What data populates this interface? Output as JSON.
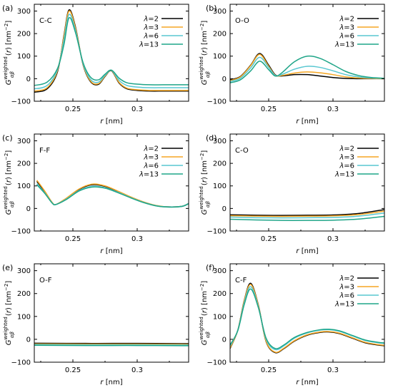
{
  "colors": {
    "lambda_2": "#000000",
    "lambda_3": "#f5a623",
    "lambda_6": "#59c7d1",
    "lambda_13": "#1fa588"
  },
  "chart_data": [
    {
      "panel": "(a)",
      "annotation": "C-C",
      "type": "line",
      "ylabel": "G_{αβ}^{weighted}(r) [nm^{-2}]",
      "xlabel": "r [nm]",
      "xlim": [
        0.22,
        0.34
      ],
      "ylim": [
        -100,
        330
      ],
      "xticks": [
        "0.25",
        "0.3"
      ],
      "yticks": [
        "-100",
        "0",
        "100",
        "200",
        "300"
      ],
      "legend": "top-right",
      "series": [
        {
          "name": "λ=2",
          "x": [
            0.22,
            0.23,
            0.238,
            0.243,
            0.247,
            0.252,
            0.258,
            0.264,
            0.27,
            0.275,
            0.28,
            0.286,
            0.292,
            0.3,
            0.31,
            0.32,
            0.33,
            0.34
          ],
          "y": [
            -60,
            -45,
            30,
            190,
            305,
            230,
            60,
            -15,
            -25,
            10,
            35,
            -20,
            -45,
            -52,
            -55,
            -55,
            -55,
            -55
          ]
        },
        {
          "name": "λ=3",
          "x": [
            0.22,
            0.23,
            0.238,
            0.243,
            0.247,
            0.252,
            0.258,
            0.264,
            0.27,
            0.275,
            0.28,
            0.286,
            0.292,
            0.3,
            0.31,
            0.32,
            0.33,
            0.34
          ],
          "y": [
            -55,
            -40,
            35,
            185,
            300,
            225,
            62,
            -12,
            -22,
            12,
            36,
            -17,
            -42,
            -49,
            -52,
            -52,
            -52,
            -52
          ]
        },
        {
          "name": "λ=6",
          "x": [
            0.22,
            0.23,
            0.238,
            0.243,
            0.247,
            0.252,
            0.258,
            0.264,
            0.27,
            0.275,
            0.28,
            0.286,
            0.292,
            0.3,
            0.31,
            0.32,
            0.33,
            0.34
          ],
          "y": [
            -45,
            -30,
            40,
            170,
            285,
            215,
            65,
            -5,
            -15,
            15,
            37,
            -8,
            -30,
            -37,
            -40,
            -40,
            -40,
            -40
          ]
        },
        {
          "name": "λ=13",
          "x": [
            0.22,
            0.23,
            0.238,
            0.243,
            0.247,
            0.252,
            0.258,
            0.264,
            0.27,
            0.275,
            0.28,
            0.286,
            0.292,
            0.3,
            0.31,
            0.32,
            0.33,
            0.34
          ],
          "y": [
            -30,
            -15,
            45,
            150,
            270,
            205,
            70,
            5,
            -5,
            20,
            38,
            2,
            -18,
            -24,
            -27,
            -27,
            -27,
            -27
          ]
        }
      ]
    },
    {
      "panel": "(b)",
      "annotation": "O-O",
      "type": "line",
      "ylabel": "G_{αβ}^{weighted}(r) [nm^{-2}]",
      "xlabel": "r [nm]",
      "xlim": [
        0.22,
        0.34
      ],
      "ylim": [
        -100,
        330
      ],
      "xticks": [
        "0.25",
        "0.3"
      ],
      "yticks": [
        "-100",
        "0",
        "100",
        "200",
        "300"
      ],
      "legend": "top-right",
      "series": [
        {
          "name": "λ=2",
          "x": [
            0.22,
            0.228,
            0.236,
            0.243,
            0.25,
            0.255,
            0.26,
            0.27,
            0.28,
            0.29,
            0.3,
            0.31,
            0.32,
            0.33,
            0.34
          ],
          "y": [
            -5,
            10,
            60,
            112,
            60,
            18,
            12,
            18,
            18,
            12,
            5,
            1,
            0,
            0,
            0
          ]
        },
        {
          "name": "λ=3",
          "x": [
            0.22,
            0.228,
            0.236,
            0.243,
            0.25,
            0.255,
            0.26,
            0.27,
            0.28,
            0.29,
            0.3,
            0.31,
            0.32,
            0.33,
            0.34
          ],
          "y": [
            -8,
            8,
            58,
            108,
            55,
            16,
            14,
            25,
            30,
            26,
            18,
            8,
            3,
            1,
            0
          ]
        },
        {
          "name": "λ=6",
          "x": [
            0.22,
            0.228,
            0.236,
            0.243,
            0.25,
            0.255,
            0.26,
            0.27,
            0.28,
            0.29,
            0.3,
            0.31,
            0.32,
            0.33,
            0.34
          ],
          "y": [
            -12,
            2,
            48,
            95,
            50,
            15,
            18,
            42,
            55,
            50,
            35,
            18,
            8,
            3,
            1
          ]
        },
        {
          "name": "λ=13",
          "x": [
            0.22,
            0.228,
            0.236,
            0.243,
            0.25,
            0.255,
            0.26,
            0.27,
            0.28,
            0.29,
            0.3,
            0.31,
            0.32,
            0.33,
            0.34
          ],
          "y": [
            -18,
            -5,
            35,
            78,
            40,
            12,
            25,
            75,
            100,
            90,
            62,
            32,
            14,
            5,
            2
          ]
        }
      ]
    },
    {
      "panel": "(c)",
      "annotation": "F-F",
      "type": "line",
      "ylabel": "G_{αβ}^{weighted}(r) [nm^{-2}]",
      "xlabel": "r [nm]",
      "xlim": [
        0.22,
        0.34
      ],
      "ylim": [
        -100,
        330
      ],
      "xticks": [
        "0.25",
        "0.3"
      ],
      "yticks": [
        "-100",
        "0",
        "100",
        "200",
        "300"
      ],
      "legend": "top-right",
      "series": [
        {
          "name": "λ=2",
          "x": [
            0.222,
            0.228,
            0.234,
            0.237,
            0.245,
            0.255,
            0.265,
            0.275,
            0.285,
            0.295,
            0.305,
            0.315,
            0.325,
            0.335,
            0.34
          ],
          "y": [
            120,
            75,
            25,
            18,
            45,
            85,
            105,
            98,
            75,
            50,
            28,
            12,
            7,
            10,
            22
          ]
        },
        {
          "name": "λ=3",
          "x": [
            0.222,
            0.228,
            0.234,
            0.237,
            0.245,
            0.255,
            0.265,
            0.275,
            0.285,
            0.295,
            0.305,
            0.315,
            0.325,
            0.335,
            0.34
          ],
          "y": [
            125,
            78,
            26,
            18,
            46,
            87,
            108,
            100,
            77,
            51,
            29,
            13,
            7,
            10,
            22
          ]
        },
        {
          "name": "λ=6",
          "x": [
            0.222,
            0.228,
            0.234,
            0.237,
            0.245,
            0.255,
            0.265,
            0.275,
            0.285,
            0.295,
            0.305,
            0.315,
            0.325,
            0.335,
            0.34
          ],
          "y": [
            110,
            70,
            24,
            18,
            42,
            80,
            98,
            92,
            72,
            48,
            27,
            12,
            7,
            10,
            22
          ]
        },
        {
          "name": "λ=13",
          "x": [
            0.222,
            0.228,
            0.234,
            0.237,
            0.245,
            0.255,
            0.265,
            0.275,
            0.285,
            0.295,
            0.305,
            0.315,
            0.325,
            0.335,
            0.34
          ],
          "y": [
            105,
            68,
            23,
            18,
            40,
            78,
            95,
            90,
            70,
            47,
            26,
            11,
            6,
            9,
            21
          ]
        }
      ]
    },
    {
      "panel": "(d)",
      "annotation": "C-O",
      "type": "line",
      "ylabel": "G_{αβ}^{weighted}(r) [nm^{-2}]",
      "xlabel": "r [nm]",
      "xlim": [
        0.22,
        0.34
      ],
      "ylim": [
        -100,
        330
      ],
      "xticks": [
        "0.25",
        "0.3"
      ],
      "yticks": [
        "-100",
        "0",
        "100",
        "200",
        "300"
      ],
      "legend": "top-right",
      "series": [
        {
          "name": "λ=2",
          "x": [
            0.22,
            0.24,
            0.26,
            0.28,
            0.3,
            0.32,
            0.34
          ],
          "y": [
            -28,
            -30,
            -31,
            -30,
            -29,
            -22,
            -5
          ]
        },
        {
          "name": "λ=3",
          "x": [
            0.22,
            0.24,
            0.26,
            0.28,
            0.3,
            0.32,
            0.34
          ],
          "y": [
            -32,
            -34,
            -35,
            -34,
            -33,
            -27,
            -12
          ]
        },
        {
          "name": "λ=6",
          "x": [
            0.22,
            0.24,
            0.26,
            0.28,
            0.3,
            0.32,
            0.34
          ],
          "y": [
            -38,
            -41,
            -42,
            -41,
            -40,
            -34,
            -20
          ]
        },
        {
          "name": "λ=13",
          "x": [
            0.22,
            0.24,
            0.26,
            0.28,
            0.3,
            0.32,
            0.34
          ],
          "y": [
            -48,
            -51,
            -53,
            -53,
            -52,
            -47,
            -35
          ]
        }
      ]
    },
    {
      "panel": "(e)",
      "annotation": "O-F",
      "type": "line",
      "ylabel": "G_{αβ}^{weighted}(r) [nm^{-2}]",
      "xlabel": "r [nm]",
      "xlim": [
        0.22,
        0.34
      ],
      "ylim": [
        -100,
        330
      ],
      "xticks": [
        "0.25",
        "0.3"
      ],
      "yticks": [
        "-100",
        "0",
        "100",
        "200",
        "300"
      ],
      "legend": "none",
      "series": [
        {
          "name": "λ=2",
          "x": [
            0.22,
            0.26,
            0.3,
            0.34
          ],
          "y": [
            -17,
            -18,
            -18,
            -19
          ]
        },
        {
          "name": "λ=3",
          "x": [
            0.22,
            0.26,
            0.3,
            0.34
          ],
          "y": [
            -20,
            -21,
            -21,
            -22
          ]
        },
        {
          "name": "λ=6",
          "x": [
            0.22,
            0.26,
            0.3,
            0.34
          ],
          "y": [
            -23,
            -24,
            -24,
            -25
          ]
        },
        {
          "name": "λ=13",
          "x": [
            0.22,
            0.26,
            0.3,
            0.34
          ],
          "y": [
            -26,
            -27,
            -27,
            -28
          ]
        }
      ]
    },
    {
      "panel": "(f)",
      "annotation": "C-F",
      "type": "line",
      "ylabel": "G_{αβ}^{weighted}(r) [nm^{-2}]",
      "xlabel": "r [nm]",
      "xlim": [
        0.22,
        0.34
      ],
      "ylim": [
        -100,
        330
      ],
      "xticks": [
        "0.25",
        "0.3"
      ],
      "yticks": [
        "-100",
        "0",
        "100",
        "200",
        "300"
      ],
      "legend": "top-right",
      "series": [
        {
          "name": "λ=2",
          "x": [
            0.22,
            0.226,
            0.231,
            0.236,
            0.242,
            0.248,
            0.255,
            0.262,
            0.27,
            0.28,
            0.29,
            0.297,
            0.305,
            0.315,
            0.325,
            0.335,
            0.34
          ],
          "y": [
            -40,
            40,
            170,
            245,
            150,
            -10,
            -58,
            -40,
            -8,
            18,
            30,
            32,
            25,
            5,
            -15,
            -25,
            -28
          ]
        },
        {
          "name": "λ=3",
          "x": [
            0.22,
            0.226,
            0.231,
            0.236,
            0.242,
            0.248,
            0.255,
            0.262,
            0.27,
            0.28,
            0.29,
            0.297,
            0.305,
            0.315,
            0.325,
            0.335,
            0.34
          ],
          "y": [
            -38,
            40,
            168,
            240,
            148,
            -8,
            -56,
            -38,
            -6,
            20,
            32,
            34,
            27,
            7,
            -13,
            -23,
            -26
          ]
        },
        {
          "name": "λ=6",
          "x": [
            0.22,
            0.226,
            0.231,
            0.236,
            0.242,
            0.248,
            0.255,
            0.262,
            0.27,
            0.28,
            0.29,
            0.297,
            0.305,
            0.315,
            0.325,
            0.335,
            0.34
          ],
          "y": [
            -30,
            40,
            160,
            230,
            142,
            0,
            -45,
            -28,
            5,
            28,
            40,
            42,
            35,
            15,
            -5,
            -15,
            -18
          ]
        },
        {
          "name": "λ=13",
          "x": [
            0.22,
            0.226,
            0.231,
            0.236,
            0.242,
            0.248,
            0.255,
            0.262,
            0.27,
            0.28,
            0.29,
            0.297,
            0.305,
            0.315,
            0.325,
            0.335,
            0.34
          ],
          "y": [
            -25,
            38,
            152,
            220,
            138,
            5,
            -40,
            -24,
            8,
            30,
            42,
            44,
            37,
            17,
            -3,
            -13,
            -16
          ]
        }
      ]
    }
  ]
}
